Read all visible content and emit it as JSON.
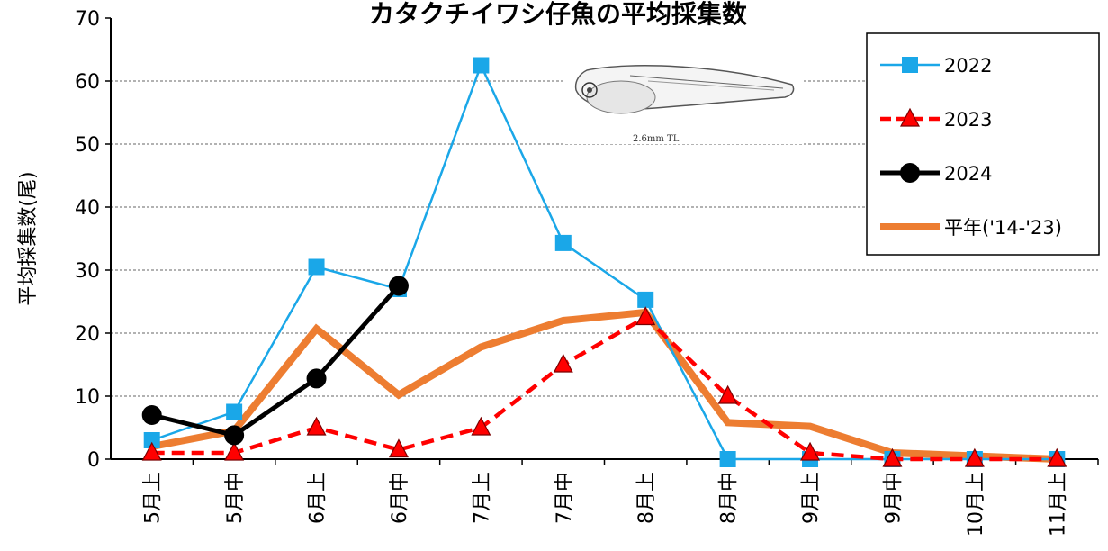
{
  "chart_data": {
    "type": "line",
    "title": "カタクチイワシ仔魚の平均採集数",
    "ylabel": "平均採集数(尾)",
    "xlabel": "",
    "ylim": [
      0,
      70
    ],
    "yticks": [
      0,
      10,
      20,
      30,
      40,
      50,
      60,
      70
    ],
    "grid": true,
    "legend_position": "top-right",
    "categories": [
      "5月上",
      "5月中",
      "6月上",
      "6月中",
      "7月上",
      "7月中",
      "8月上",
      "8月中",
      "9月上",
      "9月中",
      "10月上",
      "11月上"
    ],
    "series": [
      {
        "name": "2022",
        "color": "#1aa7e8",
        "marker": "square",
        "style": "solid-thin",
        "values": [
          3,
          7.5,
          30.5,
          27,
          62.5,
          34.3,
          25.3,
          0,
          0,
          0,
          0,
          0
        ]
      },
      {
        "name": "2023",
        "color": "#ff0000",
        "marker": "triangle",
        "style": "dashed",
        "values": [
          1,
          1,
          5,
          1.5,
          5,
          15,
          22.5,
          10,
          1,
          0,
          0,
          0
        ]
      },
      {
        "name": "2024",
        "color": "#000000",
        "marker": "circle",
        "style": "solid-thick",
        "values": [
          7,
          3.8,
          12.8,
          27.5,
          null,
          null,
          null,
          null,
          null,
          null,
          null,
          null
        ]
      },
      {
        "name": "平年('14-'23)",
        "color": "#ed7d31",
        "marker": "none",
        "style": "solid-wide",
        "values": [
          2,
          4.5,
          20.7,
          10.2,
          17.8,
          22,
          23.3,
          5.8,
          5.2,
          1,
          0.5,
          0
        ]
      }
    ],
    "image_annotation": "2.6mm TL"
  }
}
